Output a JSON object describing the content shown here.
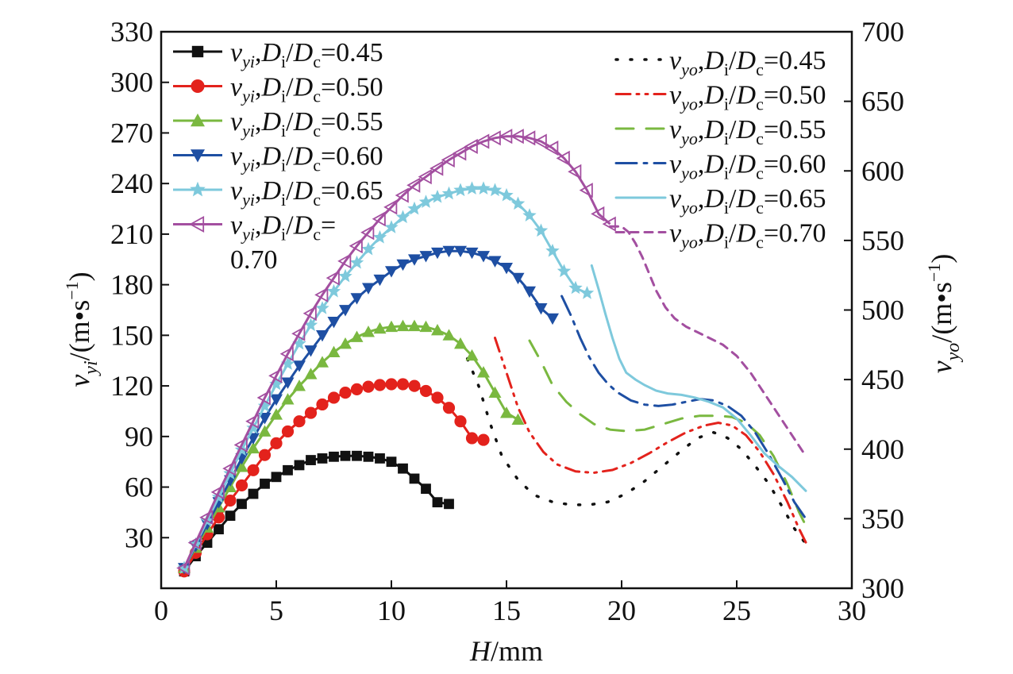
{
  "chart_data": {
    "type": "line",
    "xlabel": {
      "symbol": "H",
      "unit": "/mm"
    },
    "ylabel_left": {
      "symbol": "v",
      "subscript": "yi",
      "unit": "/(m•s",
      "superscript": "−1",
      "close": ")"
    },
    "ylabel_right": {
      "symbol": "v",
      "subscript": "yo",
      "unit": "/(m•s",
      "superscript": "−1",
      "close": ")"
    },
    "xlim": [
      0,
      30
    ],
    "ylim_left": [
      0,
      330
    ],
    "ylim_right": [
      300,
      700
    ],
    "x_ticks": [
      0,
      5,
      10,
      15,
      20,
      25,
      30
    ],
    "y_left_ticks": [
      30,
      60,
      90,
      120,
      150,
      180,
      210,
      240,
      270,
      300,
      330
    ],
    "y_right_ticks": [
      300,
      350,
      400,
      450,
      500,
      550,
      600,
      650,
      700
    ],
    "grid": false,
    "legend_left_placement": "top-left",
    "legend_right_placement": "top-right",
    "series_inner": [
      {
        "name_sym": "v",
        "name_sub": "yi",
        "ratio": "=0.45",
        "marker": "square",
        "color": "#111111",
        "x": [
          1.0,
          1.5,
          2.0,
          2.5,
          3.0,
          3.5,
          4.0,
          4.5,
          5.0,
          5.5,
          6.0,
          6.5,
          7.0,
          7.5,
          8.0,
          8.5,
          9.0,
          9.5,
          10.0,
          10.5,
          11.0,
          11.5,
          12.0,
          12.5
        ],
        "y": [
          10,
          19,
          27,
          35,
          43,
          50,
          56,
          62,
          66,
          70,
          73,
          76,
          77,
          78,
          78.5,
          78.5,
          78,
          77,
          75,
          71,
          65,
          59,
          51,
          50
        ]
      },
      {
        "name_sym": "v",
        "name_sub": "yi",
        "ratio": "=0.50",
        "marker": "circle",
        "color": "#e3221c",
        "x": [
          1.0,
          1.5,
          2.0,
          2.5,
          3.0,
          3.5,
          4.0,
          4.5,
          5.0,
          5.5,
          6.0,
          6.5,
          7.0,
          7.5,
          8.0,
          8.5,
          9.0,
          9.5,
          10.0,
          10.5,
          11.0,
          11.5,
          12.0,
          12.5,
          13.0,
          13.5,
          14.0
        ],
        "y": [
          10,
          21,
          32,
          42,
          52,
          61,
          70,
          79,
          86,
          93,
          99,
          104,
          109,
          113,
          116,
          118,
          119.5,
          120.5,
          121,
          121,
          120,
          117,
          113,
          107,
          99,
          89,
          88
        ]
      },
      {
        "name_sym": "v",
        "name_sub": "yi",
        "ratio": "=0.55",
        "marker": "triangle-up",
        "color": "#7ab840",
        "x": [
          1.0,
          1.5,
          2.0,
          2.5,
          3.0,
          3.5,
          4.0,
          4.5,
          5.0,
          5.5,
          6.0,
          6.5,
          7.0,
          7.5,
          8.0,
          8.5,
          9.0,
          9.5,
          10.0,
          10.5,
          11.0,
          11.5,
          12.0,
          12.5,
          13.0,
          13.5,
          14.0,
          14.5,
          15.0,
          15.5
        ],
        "y": [
          12,
          24,
          36,
          48,
          60,
          72,
          83,
          93,
          103,
          112,
          120,
          127,
          134,
          140,
          145,
          149,
          152,
          154,
          155,
          155.5,
          155.5,
          155,
          153,
          150,
          145,
          138,
          128,
          116,
          104,
          100
        ]
      },
      {
        "name_sym": "v",
        "name_sub": "yi",
        "ratio": "=0.60",
        "marker": "triangle-down",
        "color": "#1e4fa3",
        "x": [
          1.0,
          1.5,
          2.0,
          2.5,
          3.0,
          3.5,
          4.0,
          4.5,
          5.0,
          5.5,
          6.0,
          6.5,
          7.0,
          7.5,
          8.0,
          8.5,
          9.0,
          9.5,
          10.0,
          10.5,
          11.0,
          11.5,
          12.0,
          12.5,
          13.0,
          13.5,
          14.0,
          14.5,
          15.0,
          15.5,
          16.0,
          16.5,
          17.0
        ],
        "y": [
          12,
          25,
          38,
          51,
          64,
          77,
          89,
          101,
          112,
          122,
          132,
          141,
          150,
          158,
          165,
          172,
          178,
          183,
          188,
          192,
          195,
          197,
          199,
          200,
          200,
          199,
          197,
          194,
          190,
          184,
          176,
          166,
          160
        ]
      },
      {
        "name_sym": "v",
        "name_sub": "yi",
        "ratio": "=0.65",
        "marker": "star",
        "color": "#7ec9dc",
        "x": [
          1.0,
          1.5,
          2.0,
          2.5,
          3.0,
          3.5,
          4.0,
          4.5,
          5.0,
          5.5,
          6.0,
          6.5,
          7.0,
          7.5,
          8.0,
          8.5,
          9.0,
          9.5,
          10.0,
          10.5,
          11.0,
          11.5,
          12.0,
          12.5,
          13.0,
          13.5,
          14.0,
          14.5,
          15.0,
          15.5,
          16.0,
          16.5,
          17.0,
          17.5,
          18.0,
          18.5
        ],
        "y": [
          12,
          26,
          40,
          54,
          68,
          82,
          95,
          108,
          121,
          133,
          145,
          156,
          166,
          176,
          185,
          193,
          201,
          208,
          214,
          220,
          225,
          229,
          232,
          234,
          236,
          237,
          237,
          236,
          233,
          228,
          221,
          212,
          200,
          188,
          178,
          175
        ]
      },
      {
        "name_sym": "v",
        "name_sub": "yi",
        "ratio": "=",
        "ratio2": "0.70",
        "marker": "triangle-left",
        "color": "#a34fa0",
        "x": [
          1.0,
          1.5,
          2.0,
          2.5,
          3.0,
          3.5,
          4.0,
          4.5,
          5.0,
          5.5,
          6.0,
          6.5,
          7.0,
          7.5,
          8.0,
          8.5,
          9.0,
          9.5,
          10.0,
          10.5,
          11.0,
          11.5,
          12.0,
          12.5,
          13.0,
          13.5,
          14.0,
          14.5,
          15.0,
          15.5,
          16.0,
          16.5,
          17.0,
          17.5,
          18.0,
          18.5,
          19.0,
          19.5
        ],
        "y": [
          12,
          27,
          42,
          57,
          71,
          85,
          99,
          113,
          126,
          139,
          151,
          163,
          174,
          184,
          194,
          203,
          211,
          219,
          226,
          233,
          239,
          244,
          249,
          254,
          258,
          262,
          265,
          267,
          268,
          268,
          267,
          265,
          261,
          255,
          247,
          236,
          222,
          216
        ]
      }
    ],
    "series_outer": [
      {
        "name_sym": "v",
        "name_sub": "yo",
        "ratio": "=0.45",
        "style": "dotted",
        "color": "#111111",
        "x": [
          13.3,
          13.8,
          14.3,
          14.8,
          15.5,
          16.2,
          17.0,
          17.8,
          18.6,
          19.4,
          20.2,
          21.0,
          21.8,
          22.6,
          23.3,
          24.0,
          24.6,
          25.2,
          25.8,
          26.4,
          27.0,
          27.5,
          28.0
        ],
        "y": [
          465,
          445,
          418,
          395,
          378,
          367,
          362,
          360,
          360,
          362,
          368,
          377,
          388,
          399,
          408,
          412,
          408,
          400,
          388,
          375,
          358,
          343,
          332
        ]
      },
      {
        "name_sym": "v",
        "name_sub": "yo",
        "ratio": "=0.50",
        "style": "dash-dot-dot",
        "color": "#e3221c",
        "x": [
          14.5,
          15.0,
          15.5,
          16.0,
          16.6,
          17.2,
          18.0,
          18.8,
          19.6,
          20.4,
          21.2,
          22.0,
          22.8,
          23.6,
          24.2,
          24.8,
          25.4,
          26.0,
          26.6,
          27.2,
          27.7,
          28.0
        ],
        "y": [
          480,
          455,
          430,
          412,
          398,
          389,
          384,
          383,
          385,
          390,
          397,
          405,
          412,
          417,
          419,
          417,
          410,
          398,
          382,
          362,
          343,
          333
        ]
      },
      {
        "name_sym": "v",
        "name_sub": "yo",
        "ratio": "=0.55",
        "style": "dashed",
        "color": "#7ab840",
        "x": [
          16.0,
          16.5,
          17.0,
          17.6,
          18.2,
          18.8,
          19.5,
          20.2,
          21.0,
          21.8,
          22.6,
          23.4,
          24.2,
          24.8,
          25.4,
          26.0,
          26.6,
          27.2,
          27.7,
          28.0
        ],
        "y": [
          478,
          463,
          446,
          434,
          425,
          418,
          414,
          413,
          414,
          418,
          422,
          424,
          424,
          423,
          419,
          410,
          395,
          375,
          355,
          345
        ]
      },
      {
        "name_sym": "v",
        "name_sub": "yo",
        "ratio": "=0.60",
        "style": "dash-dot",
        "color": "#1e4fa3",
        "x": [
          17.4,
          17.8,
          18.2,
          18.6,
          19.0,
          19.4,
          19.8,
          20.4,
          21.0,
          21.6,
          22.2,
          22.8,
          23.4,
          24.0,
          24.6,
          25.2,
          25.8,
          26.4,
          27.0,
          27.5,
          28.0
        ],
        "y": [
          510,
          496,
          480,
          466,
          455,
          447,
          441,
          435,
          432,
          431,
          432,
          434,
          436,
          435,
          431,
          424,
          412,
          396,
          378,
          362,
          350
        ]
      },
      {
        "name_sym": "v",
        "name_sub": "yo",
        "ratio": "=0.65",
        "style": "solid",
        "color": "#7ec9dc",
        "x": [
          18.7,
          19.0,
          19.3,
          19.6,
          19.9,
          20.2,
          20.6,
          21.0,
          21.5,
          22.0,
          22.6,
          23.2,
          23.8,
          24.4,
          25.0,
          25.6,
          26.2,
          26.8,
          27.4,
          28.0
        ],
        "y": [
          532,
          515,
          497,
          480,
          465,
          455,
          450,
          446,
          442,
          440,
          439,
          437,
          434,
          430,
          422,
          410,
          397,
          388,
          380,
          370
        ]
      },
      {
        "name_sym": "v",
        "name_sub": "yo",
        "ratio": "=0.70",
        "style": "short-dash",
        "color": "#a34fa0",
        "x": [
          19.5,
          20.0,
          20.3,
          20.6,
          20.9,
          21.2,
          21.5,
          21.9,
          22.3,
          22.8,
          23.3,
          23.8,
          24.4,
          25.0,
          25.6,
          26.2,
          26.8,
          27.4,
          28.0
        ],
        "y": [
          560,
          560,
          556,
          548,
          538,
          526,
          514,
          502,
          494,
          488,
          484,
          480,
          475,
          467,
          455,
          440,
          425,
          410,
          395
        ]
      }
    ]
  }
}
